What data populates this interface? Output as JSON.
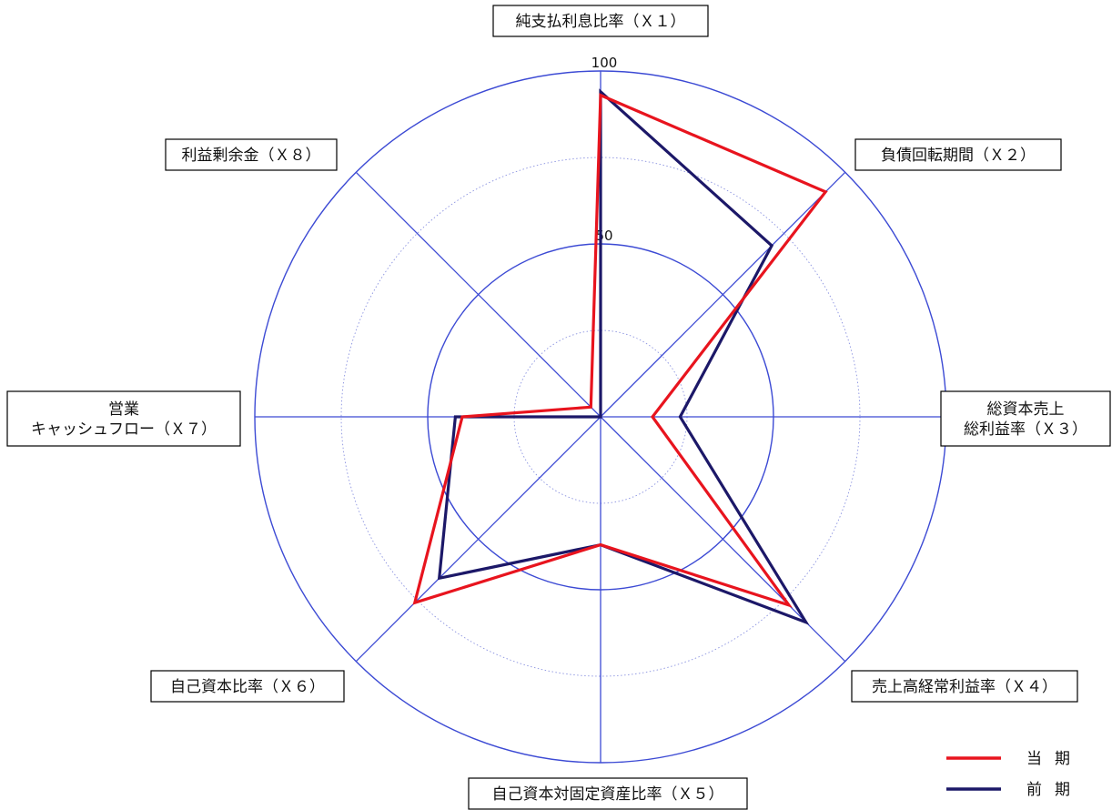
{
  "chart_data": {
    "type": "radar",
    "axes": [
      "純支払利息比率（Ｘ１）",
      "負債回転期間（Ｘ２）",
      [
        "総資本売上",
        "総利益率（Ｘ３）"
      ],
      "売上高経常利益率（Ｘ４）",
      "自己資本対固定資産比率（Ｘ５）",
      "自己資本比率（Ｘ６）",
      [
        "営業",
        "キャッシュフロー（Ｘ７）"
      ],
      "利益剰余金（Ｘ８）"
    ],
    "r_max": 100,
    "tick_labels": [
      "50",
      "100"
    ],
    "grid_levels_solid": [
      50,
      100
    ],
    "grid_levels_dotted": [
      25,
      75
    ],
    "series": [
      {
        "name": "当期",
        "color": "#e8141e",
        "values": [
          93,
          92,
          15,
          77,
          37,
          76,
          40,
          4
        ]
      },
      {
        "name": "前期",
        "color": "#1c1868",
        "values": [
          94,
          70,
          23,
          84,
          37,
          66,
          42,
          0
        ]
      }
    ],
    "legend_position": "bottom-right",
    "grid_color": "#3c4ad4"
  }
}
